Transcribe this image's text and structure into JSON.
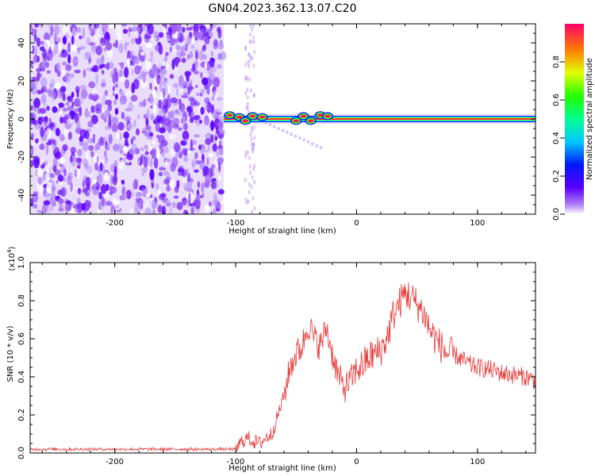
{
  "title": "GN04.2023.362.13.07.C20",
  "colors": {
    "line": "#e83a3a",
    "spectro_background": "#7a2cf0",
    "axis": "#000000"
  },
  "chart_data": [
    {
      "type": "heatmap",
      "title": "GN04.2023.362.13.07.C20",
      "xlabel": "Height of straight line (km)",
      "ylabel": "Frequency (Hz)",
      "xlim": [
        -270,
        148
      ],
      "ylim": [
        -50,
        50
      ],
      "x_ticks": [
        -200,
        -100,
        0,
        100
      ],
      "y_ticks": [
        -40,
        -20,
        0,
        20,
        40
      ],
      "colorbar": {
        "label": "Normalized spectral amplitude",
        "range": [
          0,
          1
        ],
        "ticks": [
          "0.0",
          "0.2",
          "0.4",
          "0.6",
          "0.8"
        ],
        "colormap": "rainbow"
      },
      "noise_region_x": [
        -270,
        -110
      ],
      "signal_band": {
        "x": [
          -110,
          148
        ],
        "frequency": 0
      }
    },
    {
      "type": "line",
      "xlabel": "Height of straight line (km)",
      "ylabel": "SNR (10 * v/v)",
      "y_multiplier": "(x10",
      "y_multiplier_exp": "4",
      "y_multiplier_close": ")",
      "xlim": [
        -270,
        148
      ],
      "ylim": [
        0,
        1.0
      ],
      "x_ticks": [
        -200,
        -100,
        0,
        100
      ],
      "y_ticks": [
        "0.0",
        "0.2",
        "0.4",
        "0.6",
        "0.8",
        "1.0"
      ],
      "series": [
        {
          "x": [
            -270,
            -240,
            -200,
            -160,
            -120,
            -100,
            -95,
            -90,
            -85,
            -80,
            -75,
            -70,
            -65,
            -60,
            -55,
            -50,
            -45,
            -40,
            -35,
            -30,
            -25,
            -20,
            -15,
            -10,
            -5,
            0,
            5,
            10,
            15,
            20,
            25,
            30,
            35,
            40,
            45,
            50,
            55,
            60,
            65,
            70,
            75,
            80,
            85,
            90,
            95,
            100,
            110,
            120,
            130,
            140,
            148
          ],
          "y": [
            0.02,
            0.02,
            0.02,
            0.02,
            0.02,
            0.02,
            0.06,
            0.08,
            0.06,
            0.05,
            0.08,
            0.1,
            0.2,
            0.3,
            0.45,
            0.52,
            0.56,
            0.68,
            0.6,
            0.56,
            0.66,
            0.52,
            0.4,
            0.34,
            0.38,
            0.44,
            0.46,
            0.5,
            0.52,
            0.54,
            0.6,
            0.72,
            0.78,
            0.84,
            0.82,
            0.78,
            0.74,
            0.66,
            0.6,
            0.56,
            0.52,
            0.52,
            0.5,
            0.48,
            0.46,
            0.45,
            0.44,
            0.42,
            0.41,
            0.4,
            0.38
          ]
        }
      ]
    }
  ]
}
